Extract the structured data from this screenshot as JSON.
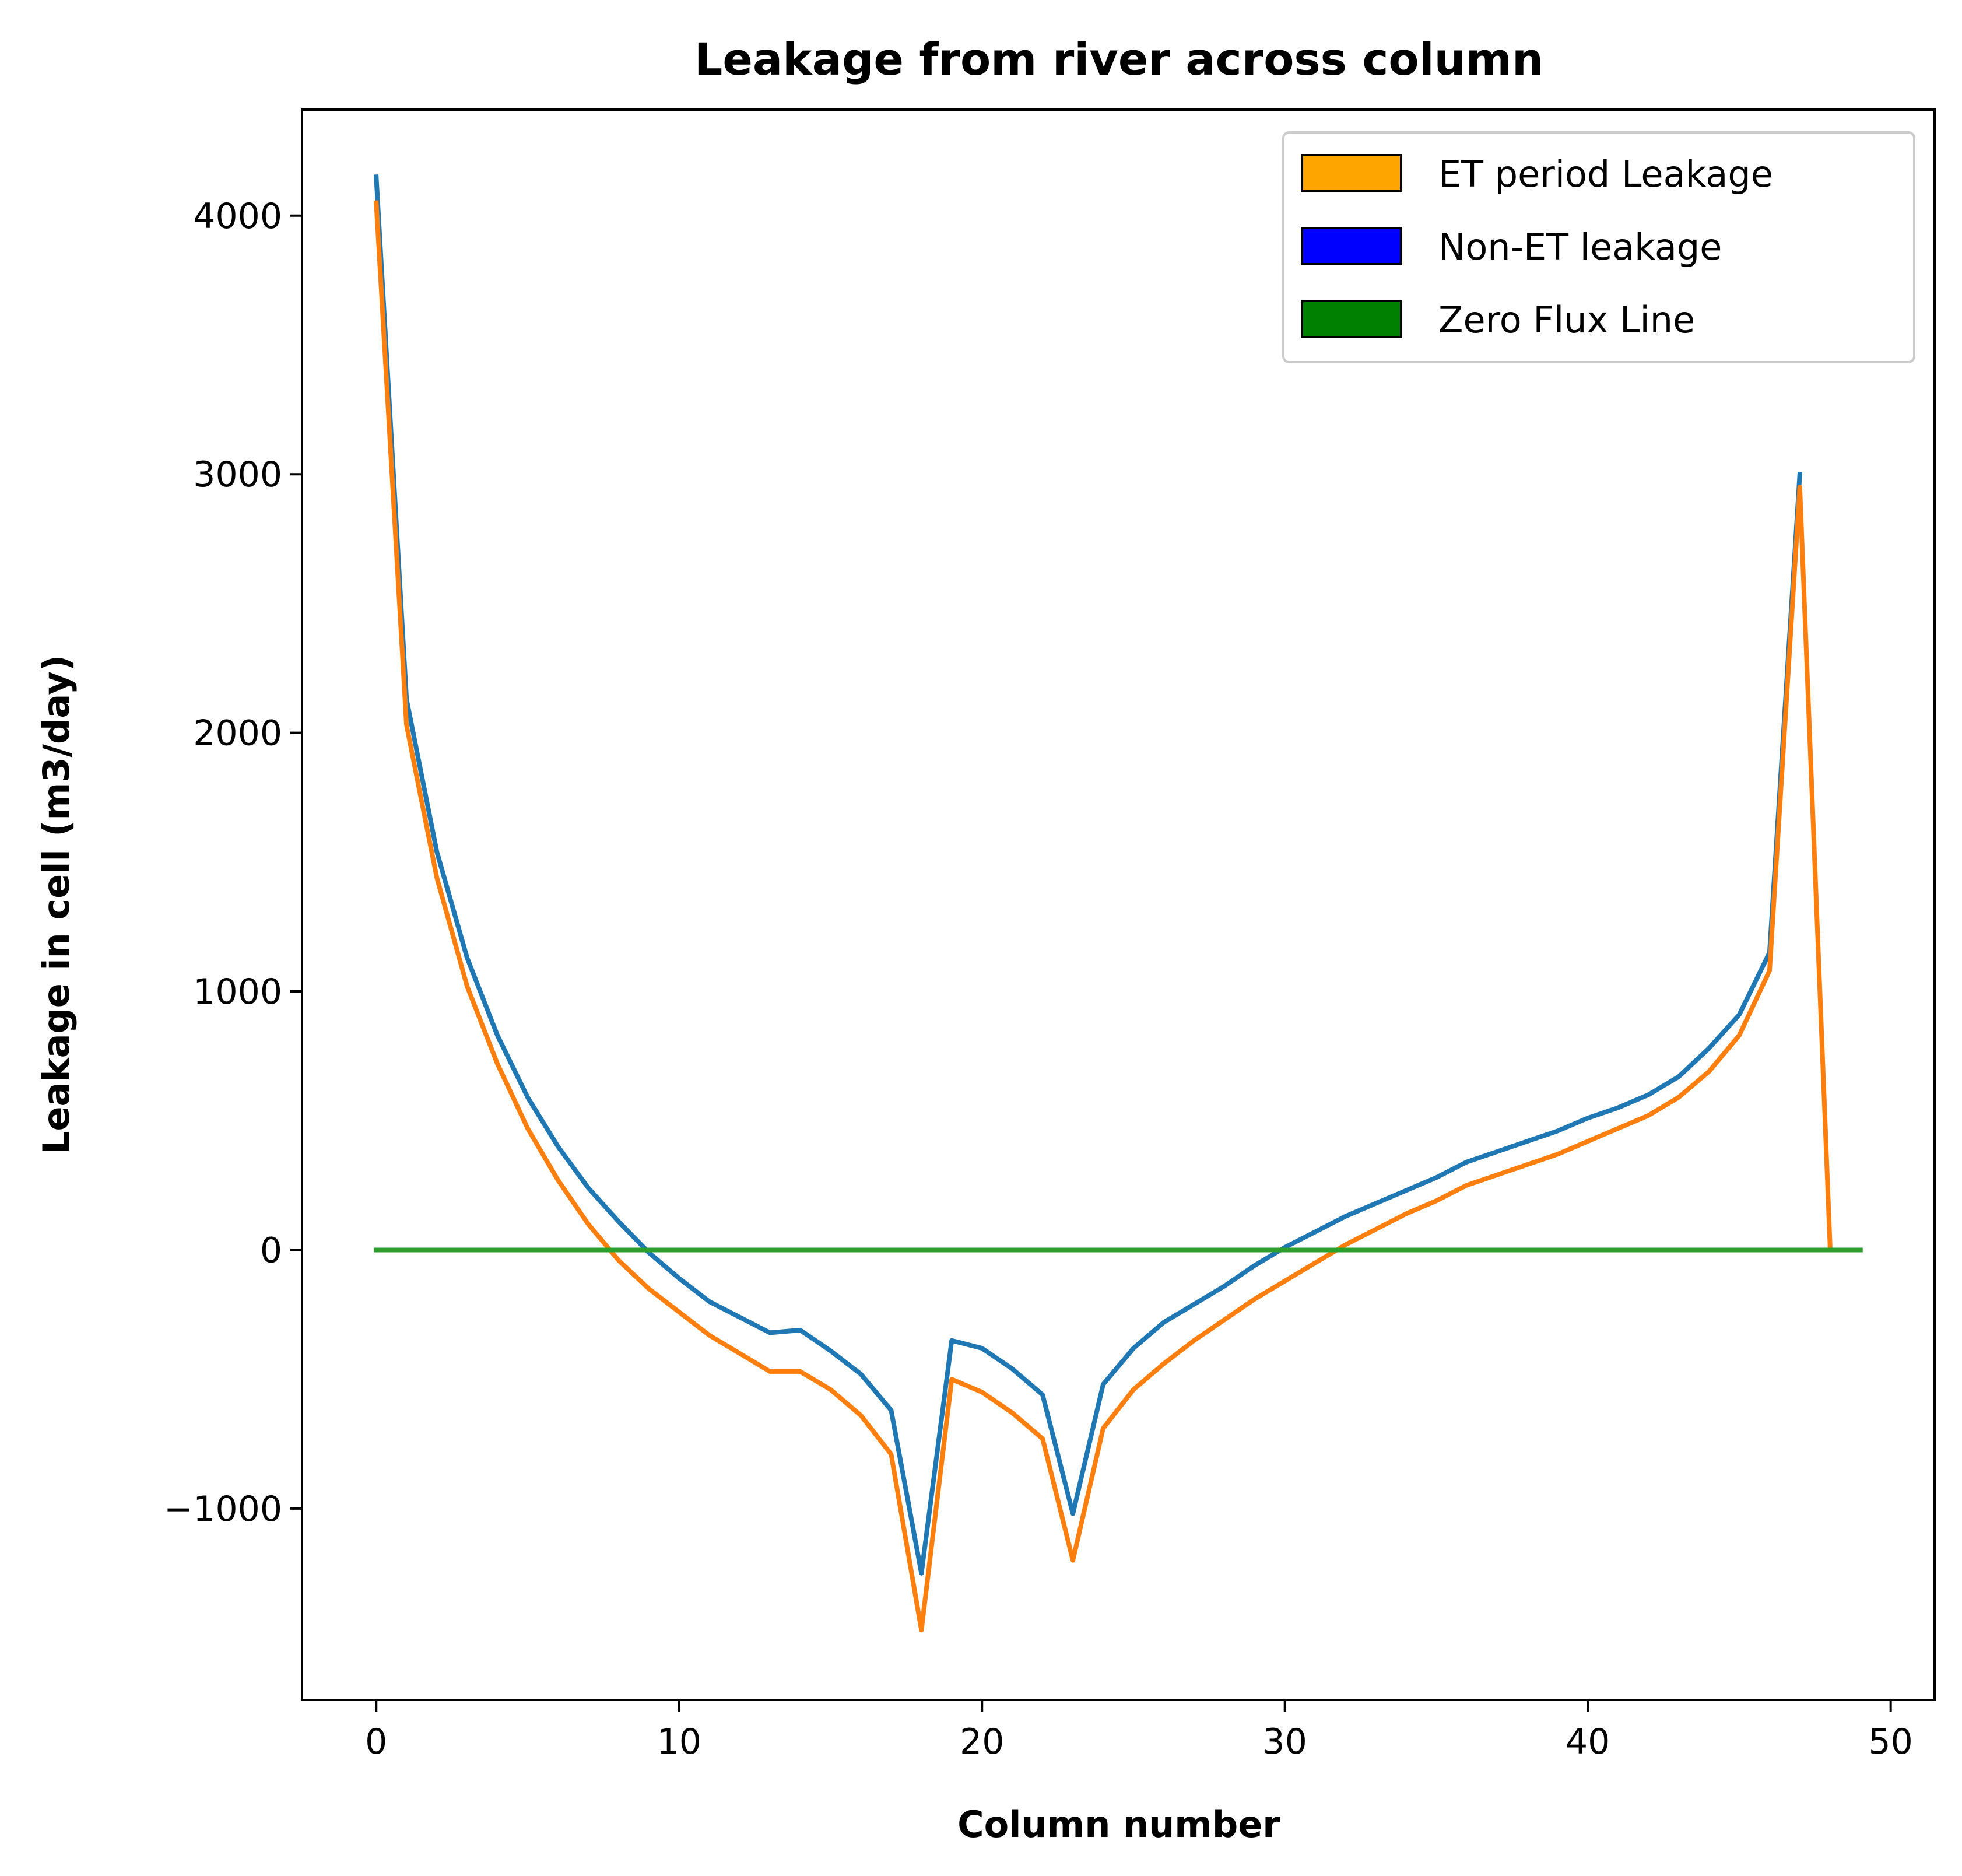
{
  "chart_data": {
    "type": "line",
    "title": "Leakage from river across column",
    "xlabel": "Column number",
    "ylabel": "Leakage in cell (m3/day)",
    "xlim": [
      -2.45,
      51.45
    ],
    "ylim": [
      -1740,
      4410
    ],
    "x_ticks": [
      0,
      10,
      20,
      30,
      40,
      50
    ],
    "x_tick_labels": [
      "0",
      "10",
      "20",
      "30",
      "40",
      "50"
    ],
    "y_ticks": [
      -1000,
      0,
      1000,
      2000,
      3000,
      4000
    ],
    "y_tick_labels": [
      "−1000",
      "0",
      "1000",
      "2000",
      "3000",
      "4000"
    ],
    "grid": false,
    "legend_position": "top-right",
    "legend": [
      {
        "label": "ET period Leakage",
        "color": "#ffa500"
      },
      {
        "label": "Non-ET leakage",
        "color": "#0000ff"
      },
      {
        "label": "Zero Flux Line",
        "color": "#008000"
      }
    ],
    "series": [
      {
        "color": "#1f77b4",
        "x": [
          0,
          1,
          2,
          3,
          4,
          5,
          6,
          7,
          8,
          9,
          10,
          11,
          12,
          13,
          14,
          15,
          16,
          17,
          18,
          19,
          20,
          21,
          22,
          23,
          24,
          25,
          26,
          27,
          28,
          29,
          30,
          31,
          32,
          33,
          34,
          35,
          36,
          37,
          38,
          39,
          40,
          41,
          42,
          43,
          44,
          45,
          46,
          47,
          48
        ],
        "y": [
          4150,
          2130,
          1540,
          1130,
          830,
          590,
          400,
          240,
          110,
          -10,
          -110,
          -200,
          -260,
          -320,
          -310,
          -390,
          -480,
          -620,
          -1250,
          -350,
          -380,
          -460,
          -560,
          -1020,
          -520,
          -380,
          -280,
          -210,
          -140,
          -60,
          10,
          70,
          130,
          180,
          230,
          280,
          340,
          380,
          420,
          460,
          510,
          550,
          600,
          670,
          780,
          910,
          1150,
          3000,
          null
        ]
      },
      {
        "color": "#ff7f0e",
        "x": [
          0,
          1,
          2,
          3,
          4,
          5,
          6,
          7,
          8,
          9,
          10,
          11,
          12,
          13,
          14,
          15,
          16,
          17,
          18,
          19,
          20,
          21,
          22,
          23,
          24,
          25,
          26,
          27,
          28,
          29,
          30,
          31,
          32,
          33,
          34,
          35,
          36,
          37,
          38,
          39,
          40,
          41,
          42,
          43,
          44,
          45,
          46,
          47,
          48
        ],
        "y": [
          4050,
          2030,
          1440,
          1020,
          720,
          470,
          270,
          100,
          -40,
          -150,
          -240,
          -330,
          -400,
          -470,
          -470,
          -540,
          -640,
          -790,
          -1470,
          -500,
          -550,
          -630,
          -730,
          -1200,
          -690,
          -540,
          -440,
          -350,
          -270,
          -190,
          -120,
          -50,
          20,
          80,
          140,
          190,
          250,
          290,
          330,
          370,
          420,
          470,
          520,
          590,
          690,
          830,
          1080,
          2950,
          10
        ]
      },
      {
        "color": "#2ca02c",
        "x": [
          0,
          49
        ],
        "y": [
          0,
          0
        ]
      }
    ]
  }
}
